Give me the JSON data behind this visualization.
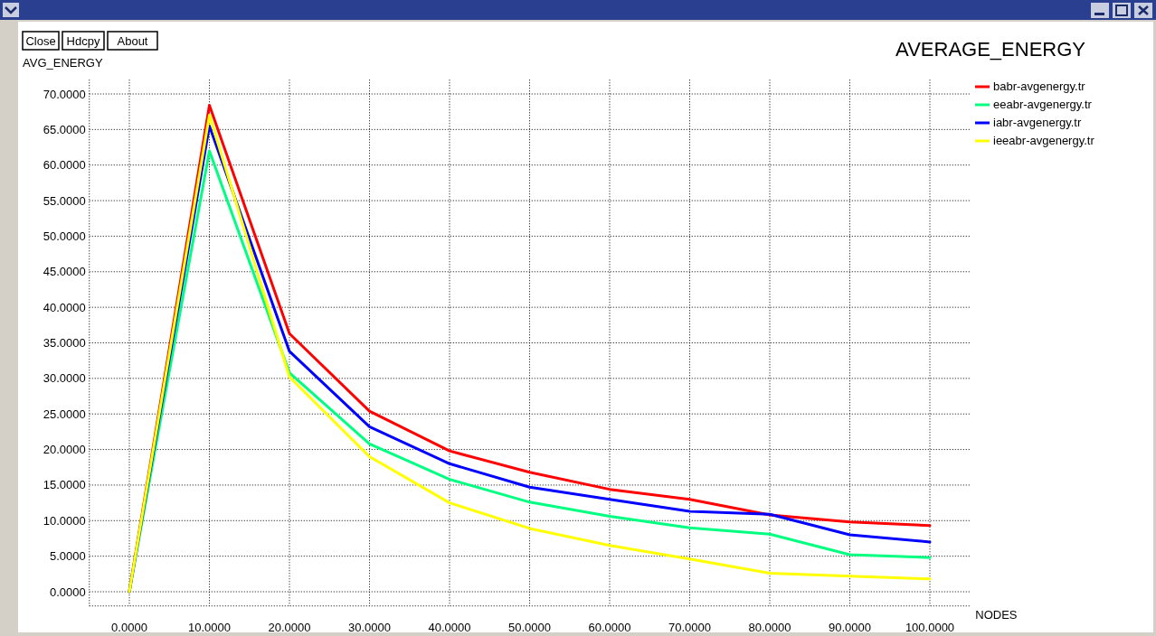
{
  "chart_data": {
    "type": "line",
    "title": "AVERAGE_ENERGY",
    "xlabel": "NODES",
    "ylabel": "AVG_ENERGY",
    "annotations": [
      "Close",
      "Hdcpy",
      "About"
    ],
    "x": [
      0,
      10,
      20,
      30,
      40,
      50,
      60,
      70,
      80,
      90,
      100
    ],
    "xlim": [
      -5,
      105
    ],
    "ylim": [
      -2,
      72
    ],
    "xticks": [
      {
        "value": 0,
        "label": "0.0000"
      },
      {
        "value": 10,
        "label": "10.0000"
      },
      {
        "value": 20,
        "label": "20.0000"
      },
      {
        "value": 30,
        "label": "30.0000"
      },
      {
        "value": 40,
        "label": "40.0000"
      },
      {
        "value": 50,
        "label": "50.0000"
      },
      {
        "value": 60,
        "label": "60.0000"
      },
      {
        "value": 70,
        "label": "70.0000"
      },
      {
        "value": 80,
        "label": "80.0000"
      },
      {
        "value": 90,
        "label": "90.0000"
      },
      {
        "value": 100,
        "label": "100.0000"
      }
    ],
    "yticks": [
      {
        "value": 0,
        "label": "0.0000"
      },
      {
        "value": 5,
        "label": "5.0000"
      },
      {
        "value": 10,
        "label": "10.0000"
      },
      {
        "value": 15,
        "label": "15.0000"
      },
      {
        "value": 20,
        "label": "20.0000"
      },
      {
        "value": 25,
        "label": "25.0000"
      },
      {
        "value": 30,
        "label": "30.0000"
      },
      {
        "value": 35,
        "label": "35.0000"
      },
      {
        "value": 40,
        "label": "40.0000"
      },
      {
        "value": 45,
        "label": "45.0000"
      },
      {
        "value": 50,
        "label": "50.0000"
      },
      {
        "value": 55,
        "label": "55.0000"
      },
      {
        "value": 60,
        "label": "60.0000"
      },
      {
        "value": 65,
        "label": "65.0000"
      },
      {
        "value": 70,
        "label": "70.0000"
      }
    ],
    "grid": true,
    "legend": "top right",
    "marker": "none",
    "line_style": "solid",
    "series": [
      {
        "name": "babr-avgenergy.tr",
        "color": "#ff0000",
        "values": [
          0,
          68.4,
          36.3,
          25.4,
          19.8,
          16.8,
          14.4,
          13,
          10.8,
          9.8,
          9.3
        ]
      },
      {
        "name": "eeabr-avgenergy.tr",
        "color": "#00ff80",
        "values": [
          0,
          62,
          30.8,
          20.8,
          15.8,
          12.6,
          10.6,
          9,
          8.1,
          5.2,
          4.8
        ]
      },
      {
        "name": "iabr-avgenergy.tr",
        "color": "#0000ff",
        "values": [
          0,
          65.5,
          33.8,
          23.2,
          18,
          14.7,
          13,
          11.3,
          10.9,
          8,
          7
        ]
      },
      {
        "name": "ieeabr-avgenergy.tr",
        "color": "#ffff00",
        "values": [
          0,
          67,
          30.2,
          19,
          12.5,
          8.9,
          6.5,
          4.6,
          2.6,
          2.2,
          1.8
        ]
      }
    ]
  }
}
